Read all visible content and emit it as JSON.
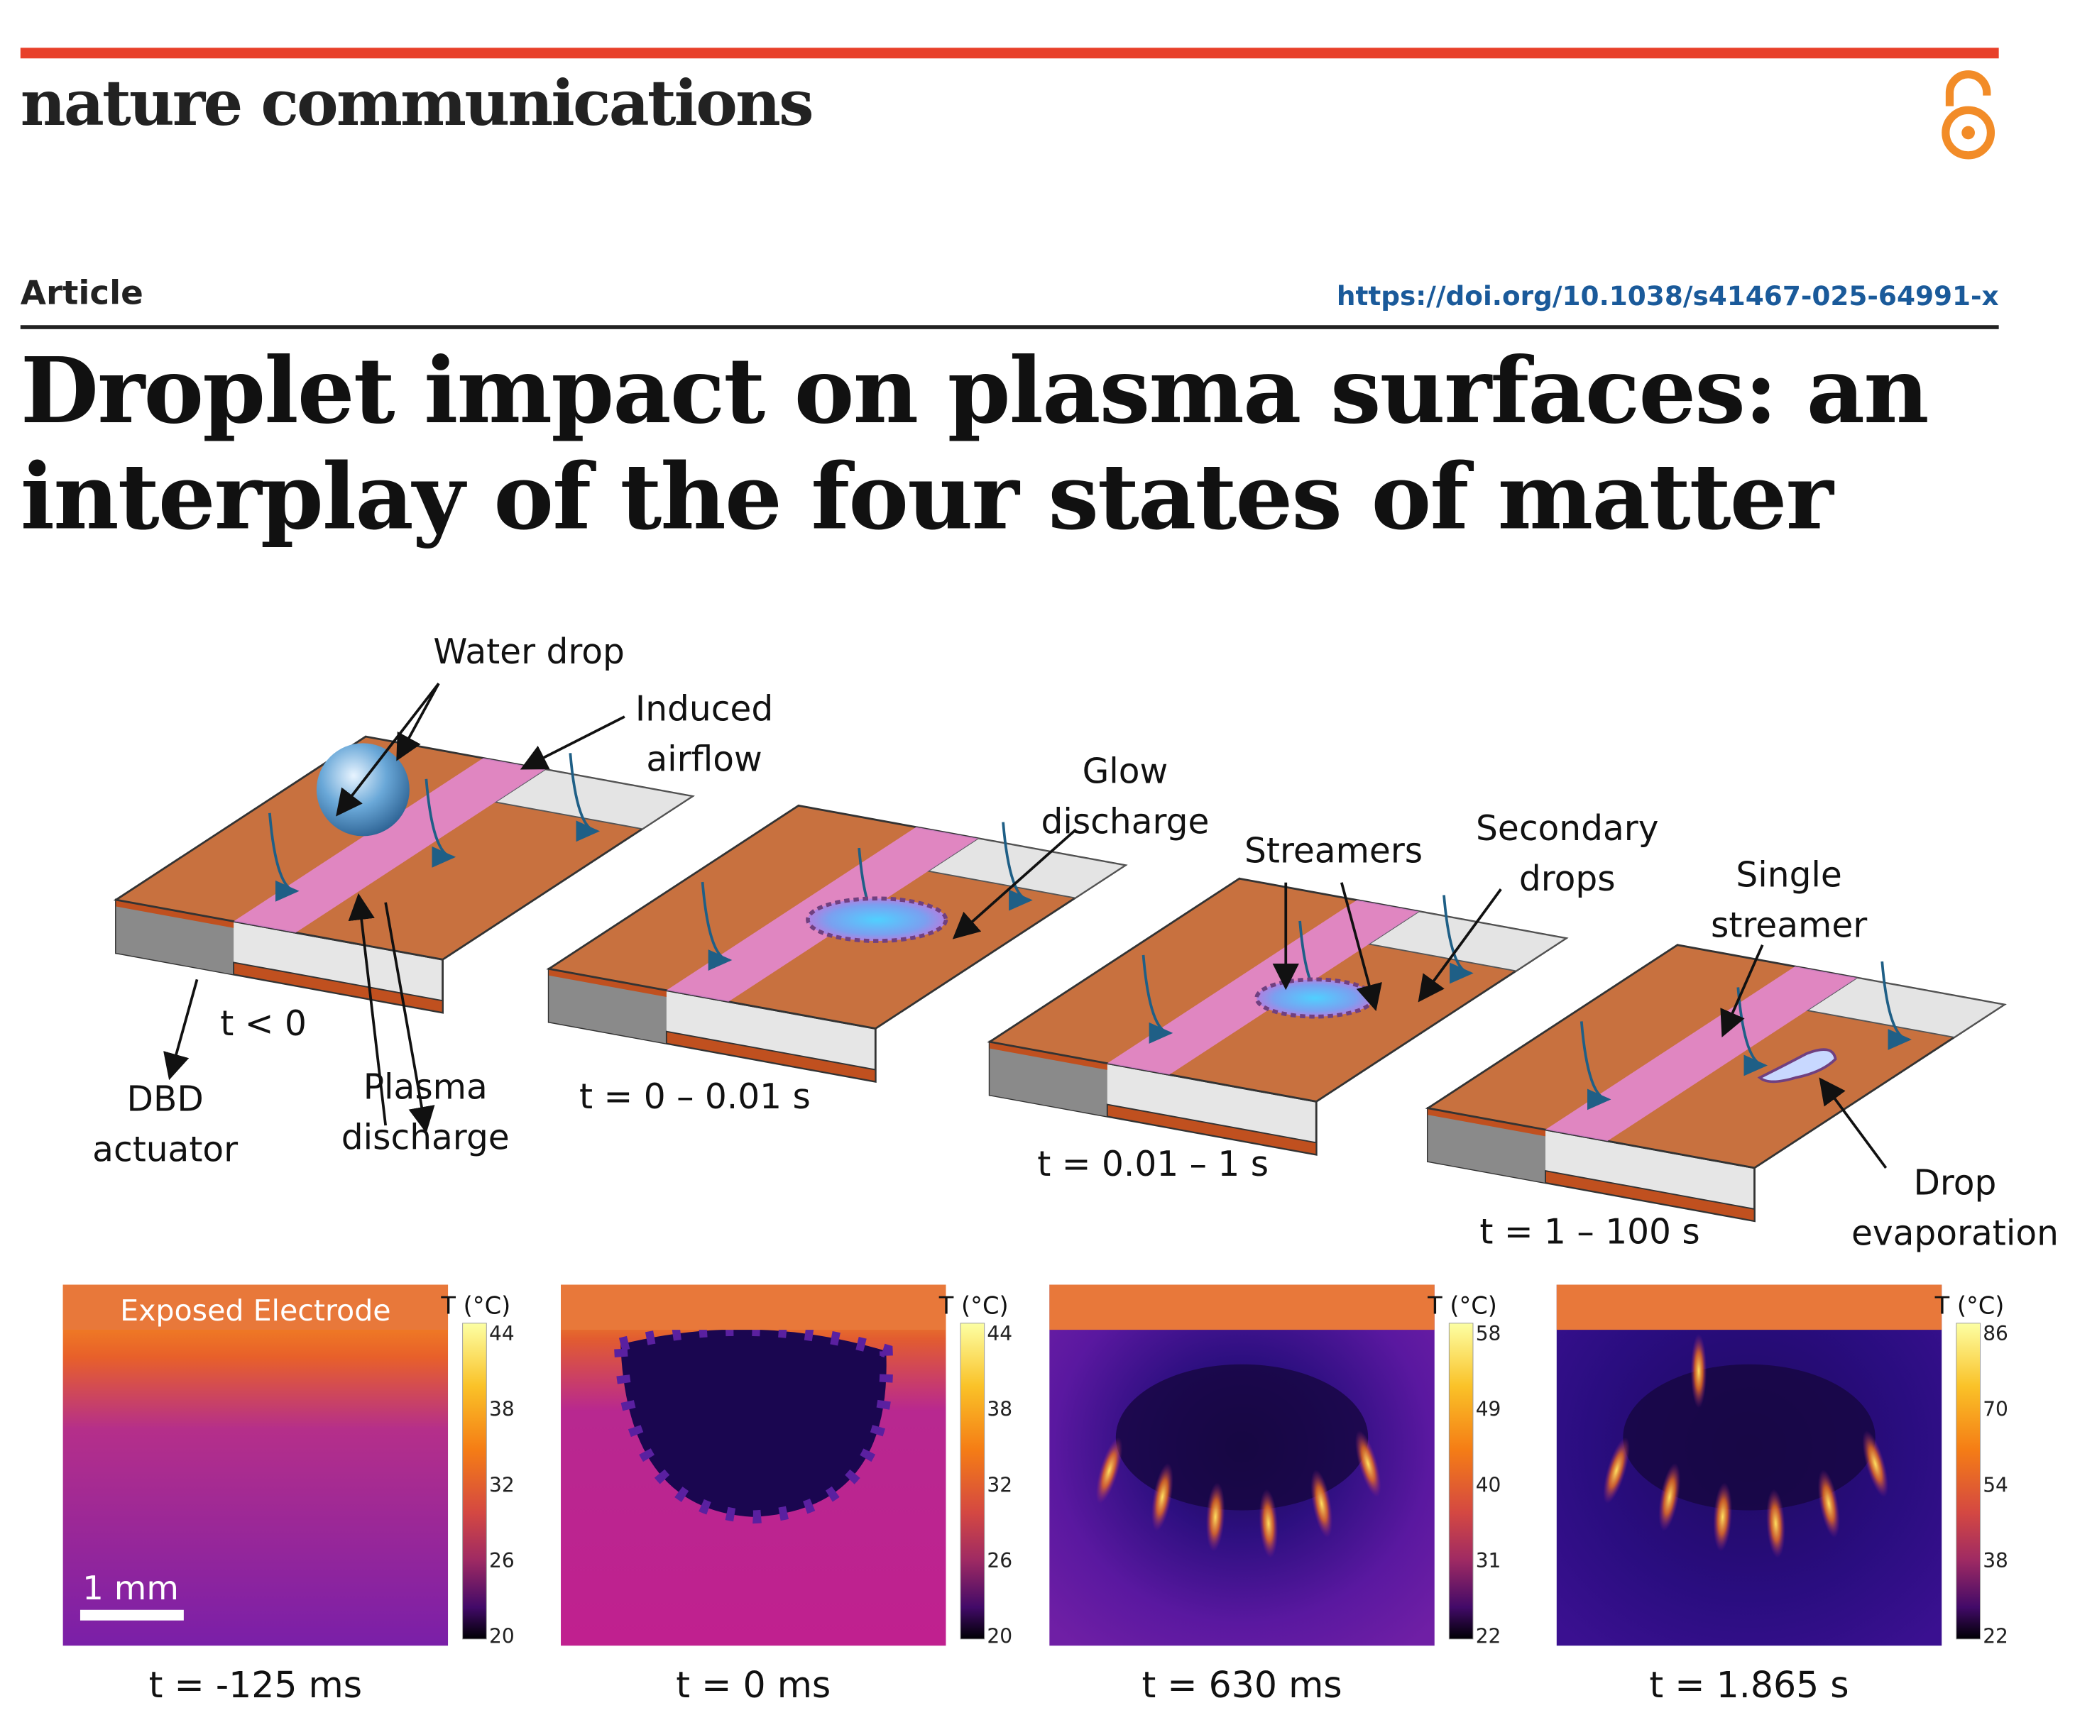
{
  "header": {
    "journal": "nature communications",
    "section": "Article",
    "doi": "https://doi.org/10.1038/s41467-025-64991-x"
  },
  "title": [
    "Droplet impact on plasma surfaces: an",
    "interplay of the four states of matter"
  ],
  "figure": {
    "schematic": {
      "labels": [
        {
          "lines": [
            "Water drop"
          ]
        },
        {
          "lines": [
            "Induced",
            "airflow"
          ]
        },
        {
          "lines": [
            "Glow",
            "discharge"
          ]
        },
        {
          "lines": [
            "Streamers"
          ]
        },
        {
          "lines": [
            "Secondary",
            "drops"
          ]
        },
        {
          "lines": [
            "Single",
            "streamer"
          ]
        },
        {
          "lines": [
            "DBD",
            "actuator"
          ]
        },
        {
          "lines": [
            "Plasma",
            "discharge"
          ]
        },
        {
          "lines": [
            "Drop",
            "evaporation"
          ]
        }
      ],
      "times": [
        "t < 0",
        "t = 0 – 0.01 s",
        "t = 0.01 – 1 s",
        "t = 1 – 100 s"
      ]
    },
    "thermal": {
      "electrode_label": "Exposed Electrode",
      "scale_bar": "1 mm",
      "panels": [
        {
          "time": "t = -125 ms",
          "unit": "T (°C)",
          "ticks": [
            44,
            38,
            32,
            26,
            20
          ]
        },
        {
          "time": "t = 0 ms",
          "unit": "T (°C)",
          "ticks": [
            44,
            38,
            32,
            26,
            20
          ]
        },
        {
          "time": "t = 630 ms",
          "unit": "T (°C)",
          "ticks": [
            58,
            49,
            40,
            31,
            22
          ]
        },
        {
          "time": "t = 1.865 s",
          "unit": "T (°C)",
          "ticks": [
            86,
            70,
            54,
            38,
            22
          ]
        }
      ]
    }
  }
}
